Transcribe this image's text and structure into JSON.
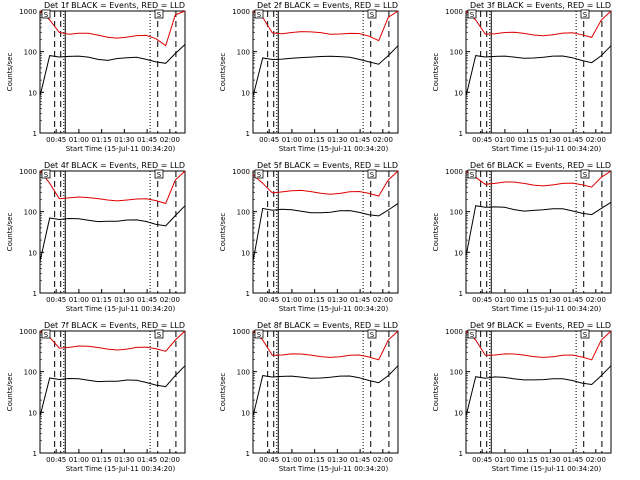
{
  "chart_data": [
    {
      "type": "line",
      "title": "Det 1f BLACK = Events, RED = LLD",
      "xlabel": "Start Time (15-Jul-11 00:34:20)",
      "ylabel": "Counts/sec",
      "x_ticks": [
        "00:45",
        "01:00",
        "01:15",
        "01:30",
        "01:45",
        "02:00"
      ],
      "y_ticks": [
        "1",
        "10",
        "100",
        "1000"
      ],
      "ylim": [
        1,
        1000
      ],
      "log_y": true,
      "xlim": [
        "00:34:20",
        "02:10"
      ],
      "markers": [
        "S",
        "S"
      ],
      "series": [
        {
          "color": "#e00000",
          "values": [
            1000,
            600,
            330,
            270,
            260,
            255,
            250,
            245,
            240,
            235,
            230,
            225,
            200,
            150,
            800,
            1000
          ]
        },
        {
          "color": "#000000",
          "values": [
            8,
            80,
            75,
            70,
            70,
            72,
            70,
            68,
            70,
            66,
            65,
            62,
            60,
            58,
            90,
            150
          ]
        }
      ],
      "vlines": {
        "dashed": [
          "00:44",
          "00:48",
          "01:52",
          "02:04"
        ],
        "solid": [
          "00:51"
        ],
        "dotted": [
          "00:50",
          "01:47"
        ]
      }
    },
    {
      "type": "line",
      "title": "Det 2f BLACK = Events, RED = LLD",
      "xlabel": "Start Time (15-Jul-11 00:34:20)",
      "ylabel": "Counts/sec",
      "x_ticks": [
        "00:45",
        "01:00",
        "01:15",
        "01:30",
        "01:45",
        "02:00"
      ],
      "y_ticks": [
        "1",
        "10",
        "100",
        "1000"
      ],
      "ylim": [
        1,
        1000
      ],
      "log_y": true,
      "xlim": [
        "00:34:20",
        "02:10"
      ],
      "markers": [
        "S",
        "S"
      ],
      "series": [
        {
          "color": "#e00000",
          "values": [
            1000,
            700,
            320,
            280,
            270,
            280,
            300,
            320,
            300,
            280,
            260,
            250,
            230,
            200,
            700,
            1000
          ]
        },
        {
          "color": "#000000",
          "values": [
            8,
            70,
            65,
            60,
            62,
            70,
            80,
            85,
            80,
            70,
            65,
            62,
            60,
            55,
            80,
            140
          ]
        }
      ],
      "vlines": {
        "dashed": [
          "00:44",
          "00:48",
          "01:52",
          "02:04"
        ],
        "solid": [
          "00:51"
        ],
        "dotted": [
          "00:50",
          "01:47"
        ]
      }
    },
    {
      "type": "line",
      "title": "Det 3f BLACK = Events, RED = LLD",
      "xlabel": "Start Time (15-Jul-11 00:34:20)",
      "ylabel": "Counts/sec",
      "x_ticks": [
        "00:45",
        "01:00",
        "01:15",
        "01:30",
        "01:45",
        "02:00"
      ],
      "y_ticks": [
        "1",
        "10",
        "100",
        "1000"
      ],
      "ylim": [
        1,
        1000
      ],
      "log_y": true,
      "xlim": [
        "00:34:20",
        "02:10"
      ],
      "markers": [
        "S",
        "S"
      ],
      "series": [
        {
          "color": "#e00000",
          "values": [
            1000,
            600,
            300,
            280,
            270,
            270,
            275,
            280,
            275,
            270,
            265,
            260,
            250,
            240,
            600,
            1000
          ]
        },
        {
          "color": "#000000",
          "values": [
            8,
            80,
            75,
            70,
            70,
            72,
            75,
            78,
            75,
            72,
            70,
            68,
            65,
            60,
            80,
            140
          ]
        }
      ],
      "vlines": {
        "dashed": [
          "00:44",
          "00:48",
          "01:52",
          "02:04"
        ],
        "solid": [
          "00:51"
        ],
        "dotted": [
          "00:50",
          "01:47"
        ]
      }
    },
    {
      "type": "line",
      "title": "Det 4f BLACK = Events, RED = LLD",
      "xlabel": "Start Time (15-Jul-11 00:34:20)",
      "ylabel": "Counts/sec",
      "x_ticks": [
        "00:45",
        "01:00",
        "01:15",
        "01:30",
        "01:45",
        "02:00"
      ],
      "y_ticks": [
        "1",
        "10",
        "100",
        "1000"
      ],
      "ylim": [
        1,
        1000
      ],
      "log_y": true,
      "xlim": [
        "00:34:20",
        "02:10"
      ],
      "markers": [
        "S",
        "S"
      ],
      "series": [
        {
          "color": "#e00000",
          "values": [
            1000,
            500,
            230,
            220,
            210,
            200,
            205,
            210,
            205,
            200,
            190,
            185,
            180,
            170,
            600,
            1000
          ]
        },
        {
          "color": "#000000",
          "values": [
            6,
            70,
            65,
            62,
            60,
            60,
            62,
            65,
            60,
            58,
            56,
            55,
            52,
            50,
            80,
            140
          ]
        }
      ],
      "vlines": {
        "dashed": [
          "00:44",
          "00:48",
          "01:52",
          "02:04"
        ],
        "solid": [
          "00:51"
        ],
        "dotted": [
          "00:50",
          "01:47"
        ]
      }
    },
    {
      "type": "line",
      "title": "Det 5f BLACK = Events, RED = LLD",
      "xlabel": "Start Time (15-Jul-11 00:34:20)",
      "ylabel": "Counts/sec",
      "x_ticks": [
        "00:45",
        "01:00",
        "01:15",
        "01:30",
        "01:45",
        "02:00"
      ],
      "y_ticks": [
        "1",
        "10",
        "100",
        "1000"
      ],
      "ylim": [
        1,
        1000
      ],
      "log_y": true,
      "xlim": [
        "00:34:20",
        "02:10"
      ],
      "markers": [
        "S",
        "S"
      ],
      "series": [
        {
          "color": "#e00000",
          "values": [
            800,
            500,
            320,
            310,
            300,
            300,
            305,
            310,
            300,
            290,
            285,
            280,
            270,
            260,
            600,
            1000
          ]
        },
        {
          "color": "#000000",
          "values": [
            6,
            120,
            110,
            105,
            100,
            100,
            102,
            105,
            100,
            98,
            95,
            92,
            90,
            88,
            110,
            160
          ]
        }
      ],
      "vlines": {
        "dashed": [
          "00:44",
          "00:48",
          "01:52",
          "02:04"
        ],
        "solid": [
          "00:51"
        ],
        "dotted": [
          "00:50",
          "01:47"
        ]
      }
    },
    {
      "type": "line",
      "title": "Det 6f BLACK = Events, RED = LLD",
      "xlabel": "Start Time (15-Jul-11 00:34:20)",
      "ylabel": "Counts/sec",
      "x_ticks": [
        "00:45",
        "01:00",
        "01:15",
        "01:30",
        "01:45",
        "02:00"
      ],
      "y_ticks": [
        "1",
        "10",
        "100",
        "1000"
      ],
      "ylim": [
        1,
        1000
      ],
      "log_y": true,
      "xlim": [
        "00:34:20",
        "02:10"
      ],
      "markers": [
        "S",
        "S"
      ],
      "series": [
        {
          "color": "#e00000",
          "values": [
            1000,
            700,
            520,
            500,
            490,
            480,
            485,
            490,
            480,
            470,
            460,
            450,
            440,
            430,
            700,
            1000
          ]
        },
        {
          "color": "#000000",
          "values": [
            8,
            140,
            130,
            120,
            115,
            110,
            112,
            120,
            115,
            110,
            105,
            100,
            98,
            95,
            120,
            170
          ]
        }
      ],
      "vlines": {
        "dashed": [
          "00:44",
          "00:48",
          "01:52",
          "02:04"
        ],
        "solid": [
          "00:51"
        ],
        "dotted": [
          "00:50",
          "01:47"
        ]
      }
    },
    {
      "type": "line",
      "title": "Det 7f BLACK = Events, RED = LLD",
      "xlabel": "Start Time (15-Jul-11 00:34:20)",
      "ylabel": "Counts/sec",
      "x_ticks": [
        "00:45",
        "01:00",
        "01:15",
        "01:30",
        "01:45",
        "02:00"
      ],
      "y_ticks": [
        "1",
        "10",
        "100",
        "1000"
      ],
      "ylim": [
        1,
        1000
      ],
      "log_y": true,
      "xlim": [
        "00:34:20",
        "02:10"
      ],
      "markers": [
        "S",
        "S"
      ],
      "series": [
        {
          "color": "#e00000",
          "values": [
            1000,
            700,
            420,
            400,
            390,
            380,
            385,
            390,
            380,
            370,
            365,
            360,
            350,
            340,
            600,
            1000
          ]
        },
        {
          "color": "#000000",
          "values": [
            8,
            70,
            65,
            62,
            60,
            60,
            62,
            65,
            60,
            58,
            55,
            52,
            50,
            48,
            80,
            140
          ]
        }
      ],
      "vlines": {
        "dashed": [
          "00:44",
          "00:48",
          "01:52",
          "02:04"
        ],
        "solid": [
          "00:51"
        ],
        "dotted": [
          "00:50",
          "01:47"
        ]
      }
    },
    {
      "type": "line",
      "title": "Det 8f BLACK = Events, RED = LLD",
      "xlabel": "Start Time (15-Jul-11 00:34:20)",
      "ylabel": "Counts/sec",
      "x_ticks": [
        "00:45",
        "01:00",
        "01:15",
        "01:30",
        "01:45",
        "02:00"
      ],
      "y_ticks": [
        "1",
        "10",
        "100",
        "1000"
      ],
      "ylim": [
        1,
        1000
      ],
      "log_y": true,
      "xlim": [
        "00:34:20",
        "02:10"
      ],
      "markers": [
        "S",
        "S"
      ],
      "series": [
        {
          "color": "#e00000",
          "values": [
            1000,
            600,
            280,
            260,
            250,
            245,
            250,
            255,
            250,
            240,
            235,
            230,
            220,
            210,
            600,
            1000
          ]
        },
        {
          "color": "#000000",
          "values": [
            8,
            80,
            75,
            70,
            70,
            72,
            75,
            78,
            75,
            72,
            70,
            68,
            65,
            60,
            80,
            140
          ]
        }
      ],
      "vlines": {
        "dashed": [
          "00:44",
          "00:48",
          "01:52",
          "02:04"
        ],
        "solid": [
          "00:51"
        ],
        "dotted": [
          "00:50",
          "01:47"
        ]
      }
    },
    {
      "type": "line",
      "title": "Det 9f BLACK = Events, RED = LLD",
      "xlabel": "Start Time (15-Jul-11 00:34:20)",
      "ylabel": "Counts/sec",
      "x_ticks": [
        "00:45",
        "01:00",
        "01:15",
        "01:30",
        "01:45",
        "02:00"
      ],
      "y_ticks": [
        "1",
        "10",
        "100",
        "1000"
      ],
      "ylim": [
        1,
        1000
      ],
      "log_y": true,
      "xlim": [
        "00:34:20",
        "02:10"
      ],
      "markers": [
        "S",
        "S"
      ],
      "series": [
        {
          "color": "#e00000",
          "values": [
            1000,
            600,
            280,
            260,
            250,
            245,
            250,
            255,
            250,
            240,
            235,
            230,
            220,
            210,
            600,
            1000
          ]
        },
        {
          "color": "#000000",
          "values": [
            8,
            75,
            70,
            68,
            65,
            65,
            68,
            70,
            66,
            62,
            60,
            58,
            56,
            54,
            80,
            140
          ]
        }
      ],
      "vlines": {
        "dashed": [
          "00:44",
          "00:48",
          "01:52",
          "02:04"
        ],
        "solid": [
          "00:51"
        ],
        "dotted": [
          "00:50",
          "01:47"
        ]
      }
    }
  ]
}
